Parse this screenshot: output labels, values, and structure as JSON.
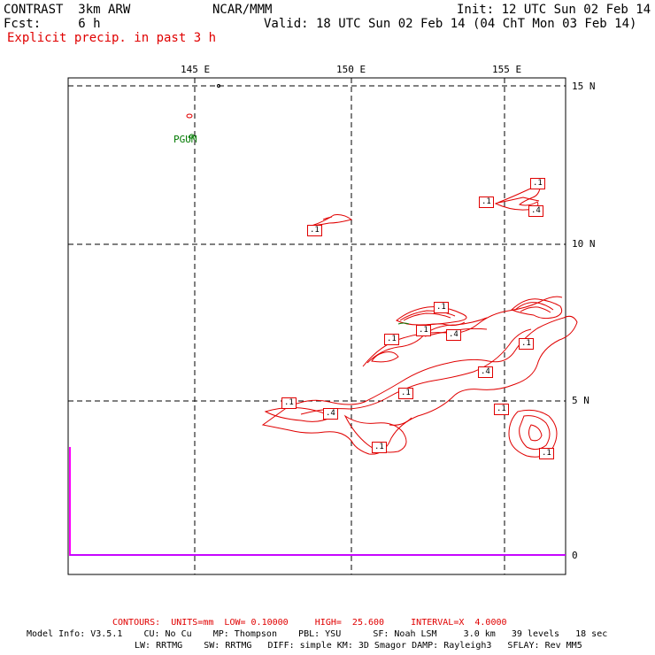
{
  "header": {
    "model": "CONTRAST  3km ARW",
    "org": "NCAR/MMM",
    "init": "Init: 12 UTC Sun 02 Feb 14",
    "fcst": "Fcst:     6 h",
    "valid": "Valid: 18 UTC Sun 02 Feb 14 (04 ChT Mon 03 Feb 14)",
    "field": "Explicit precip. in past 3 h"
  },
  "axes": {
    "lon_labels": [
      "145 E",
      "150 E",
      "155 E"
    ],
    "lat_labels": [
      "15 N",
      "10 N",
      "5 N",
      "0"
    ]
  },
  "station": "PGUM",
  "contour_labels": [
    ".1",
    ".1",
    ".4",
    ".1",
    ".1",
    ".1",
    ".4",
    ".1",
    ".1",
    ".4",
    ".1",
    ".1",
    ".4",
    ".1",
    ".1",
    ".1",
    ".1"
  ],
  "footer": {
    "contours": "CONTOURS:  UNITS=mm  LOW= 0.10000     HIGH=  25.600     INTERVAL=X  4.0000",
    "model_info_1": "Model Info: V3.5.1    CU: No Cu    MP: Thompson    PBL: YSU      SF: Noah LSM     3.0 km   39 levels   18 sec",
    "model_info_2": "LW: RRTMG    SW: RRTMG   DIFF: simple KM: 3D Smagor DAMP: Rayleigh3   SFLAY: Rev MM5"
  },
  "colors": {
    "contour": "#e00000",
    "station": "#007a00",
    "boundary": "#ff00ff",
    "grid": "#000000"
  }
}
